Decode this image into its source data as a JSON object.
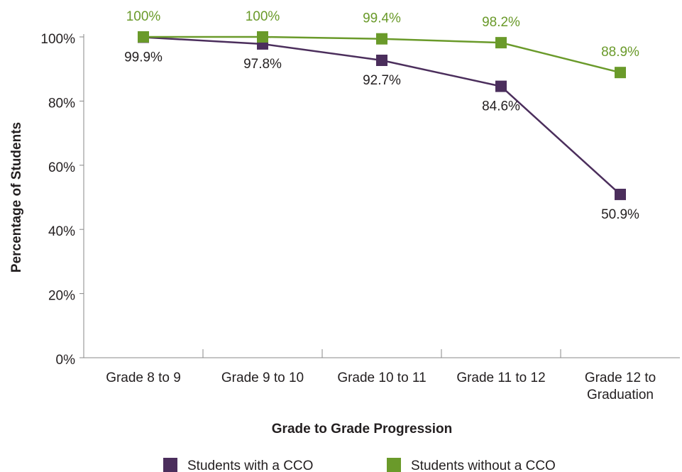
{
  "chart_data": {
    "type": "line",
    "y_label": "Percentage of Students",
    "x_label": "Grade to Grade Progression",
    "categories": [
      "Grade 8 to 9",
      "Grade 9 to 10",
      "Grade 10 to 11",
      "Grade 11 to 12",
      "Grade 12 to Graduation"
    ],
    "series": [
      {
        "name": "Students with a CCO",
        "color": "#4b2e5c",
        "values": [
          99.9,
          97.8,
          92.7,
          84.6,
          50.9
        ],
        "value_labels": [
          "99.9%",
          "97.8%",
          "92.7%",
          "84.6%",
          "50.9%"
        ]
      },
      {
        "name": "Students without a CCO",
        "color": "#6a9a2a",
        "values": [
          100,
          100,
          99.4,
          98.2,
          88.9
        ],
        "value_labels": [
          "100%",
          "100%",
          "99.4%",
          "98.2%",
          "88.9%"
        ]
      }
    ],
    "ylim": [
      0,
      100
    ],
    "yticks": [
      {
        "value": 0,
        "label": "0%"
      },
      {
        "value": 20,
        "label": "20%"
      },
      {
        "value": 40,
        "label": "40%"
      },
      {
        "value": 60,
        "label": "60%"
      },
      {
        "value": 80,
        "label": "80%"
      },
      {
        "value": 100,
        "label": "100%"
      }
    ],
    "legend": "bottom"
  }
}
